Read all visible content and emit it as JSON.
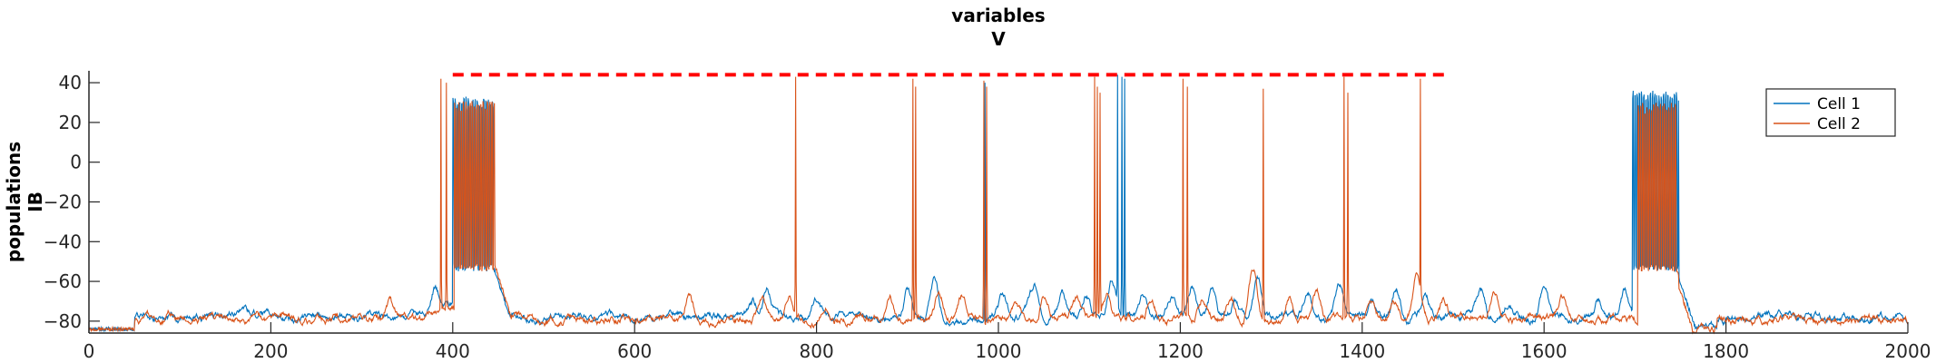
{
  "chart_data": {
    "type": "line",
    "title_lines": [
      "variables",
      "V"
    ],
    "ylabel_lines": [
      "populations",
      "IB"
    ],
    "xlabel": "",
    "xlim": [
      0,
      2000
    ],
    "ylim": [
      -86,
      46
    ],
    "xticks": [
      0,
      200,
      400,
      600,
      800,
      1000,
      1200,
      1400,
      1600,
      1800,
      2000
    ],
    "yticks": [
      -80,
      -60,
      -40,
      -20,
      0,
      20,
      40
    ],
    "grid": false,
    "legend_position": "top-right",
    "threshold_line": {
      "y": 44,
      "x_range": [
        400,
        1490
      ],
      "color": "#ff0000",
      "style": "dashed"
    },
    "series": [
      {
        "name": "Cell 1",
        "color": "#0072bd",
        "baseline": -78,
        "plateaus": [
          [
            400,
            445,
            30,
            -53
          ],
          [
            1697,
            1748,
            33,
            -53
          ]
        ],
        "burst_events": [
          [
            985,
            40
          ],
          [
            1131,
            44
          ],
          [
            1136,
            43
          ],
          [
            1139,
            42
          ]
        ],
        "subthreshold_bumps": [
          [
            170,
            -73
          ],
          [
            380,
            -66
          ],
          [
            730,
            -70
          ],
          [
            745,
            -64
          ],
          [
            800,
            -70
          ],
          [
            900,
            -64
          ],
          [
            930,
            -61
          ],
          [
            1005,
            -67
          ],
          [
            1030,
            -72
          ],
          [
            1040,
            -63
          ],
          [
            1070,
            -66
          ],
          [
            1097,
            -66
          ],
          [
            1125,
            -60
          ],
          [
            1160,
            -67
          ],
          [
            1190,
            -67
          ],
          [
            1213,
            -63
          ],
          [
            1235,
            -66
          ],
          [
            1260,
            -70
          ],
          [
            1285,
            -60
          ],
          [
            1340,
            -64
          ],
          [
            1375,
            -60
          ],
          [
            1410,
            -70
          ],
          [
            1438,
            -63
          ],
          [
            1470,
            -66
          ],
          [
            1530,
            -64
          ],
          [
            1560,
            -72
          ],
          [
            1600,
            -64
          ],
          [
            1660,
            -70
          ],
          [
            1688,
            -64
          ]
        ]
      },
      {
        "name": "Cell 2",
        "color": "#d95319",
        "baseline": -79,
        "plateaus": [
          [
            402,
            447,
            28,
            -53
          ],
          [
            1703,
            1745,
            27,
            -53
          ]
        ],
        "burst_events": [
          [
            387,
            42
          ],
          [
            393,
            40
          ],
          [
            777,
            43
          ],
          [
            906,
            42
          ],
          [
            909,
            38
          ],
          [
            984,
            41
          ],
          [
            987,
            38
          ],
          [
            1106,
            43
          ],
          [
            1109,
            38
          ],
          [
            1112,
            35
          ],
          [
            1203,
            42
          ],
          [
            1208,
            38
          ],
          [
            1291,
            37
          ],
          [
            1380,
            43
          ],
          [
            1384,
            35
          ],
          [
            1464,
            42
          ]
        ],
        "subthreshold_bumps": [
          [
            90,
            -75
          ],
          [
            330,
            -71
          ],
          [
            470,
            -76
          ],
          [
            660,
            -67
          ],
          [
            740,
            -70
          ],
          [
            770,
            -68
          ],
          [
            810,
            -72
          ],
          [
            880,
            -66
          ],
          [
            935,
            -66
          ],
          [
            960,
            -68
          ],
          [
            1018,
            -70
          ],
          [
            1050,
            -66
          ],
          [
            1085,
            -68
          ],
          [
            1120,
            -66
          ],
          [
            1168,
            -68
          ],
          [
            1225,
            -68
          ],
          [
            1255,
            -68
          ],
          [
            1280,
            -54
          ],
          [
            1320,
            -68
          ],
          [
            1350,
            -65
          ],
          [
            1410,
            -68
          ],
          [
            1435,
            -70
          ],
          [
            1460,
            -58
          ],
          [
            1490,
            -70
          ],
          [
            1545,
            -67
          ],
          [
            1620,
            -68
          ]
        ]
      }
    ]
  }
}
